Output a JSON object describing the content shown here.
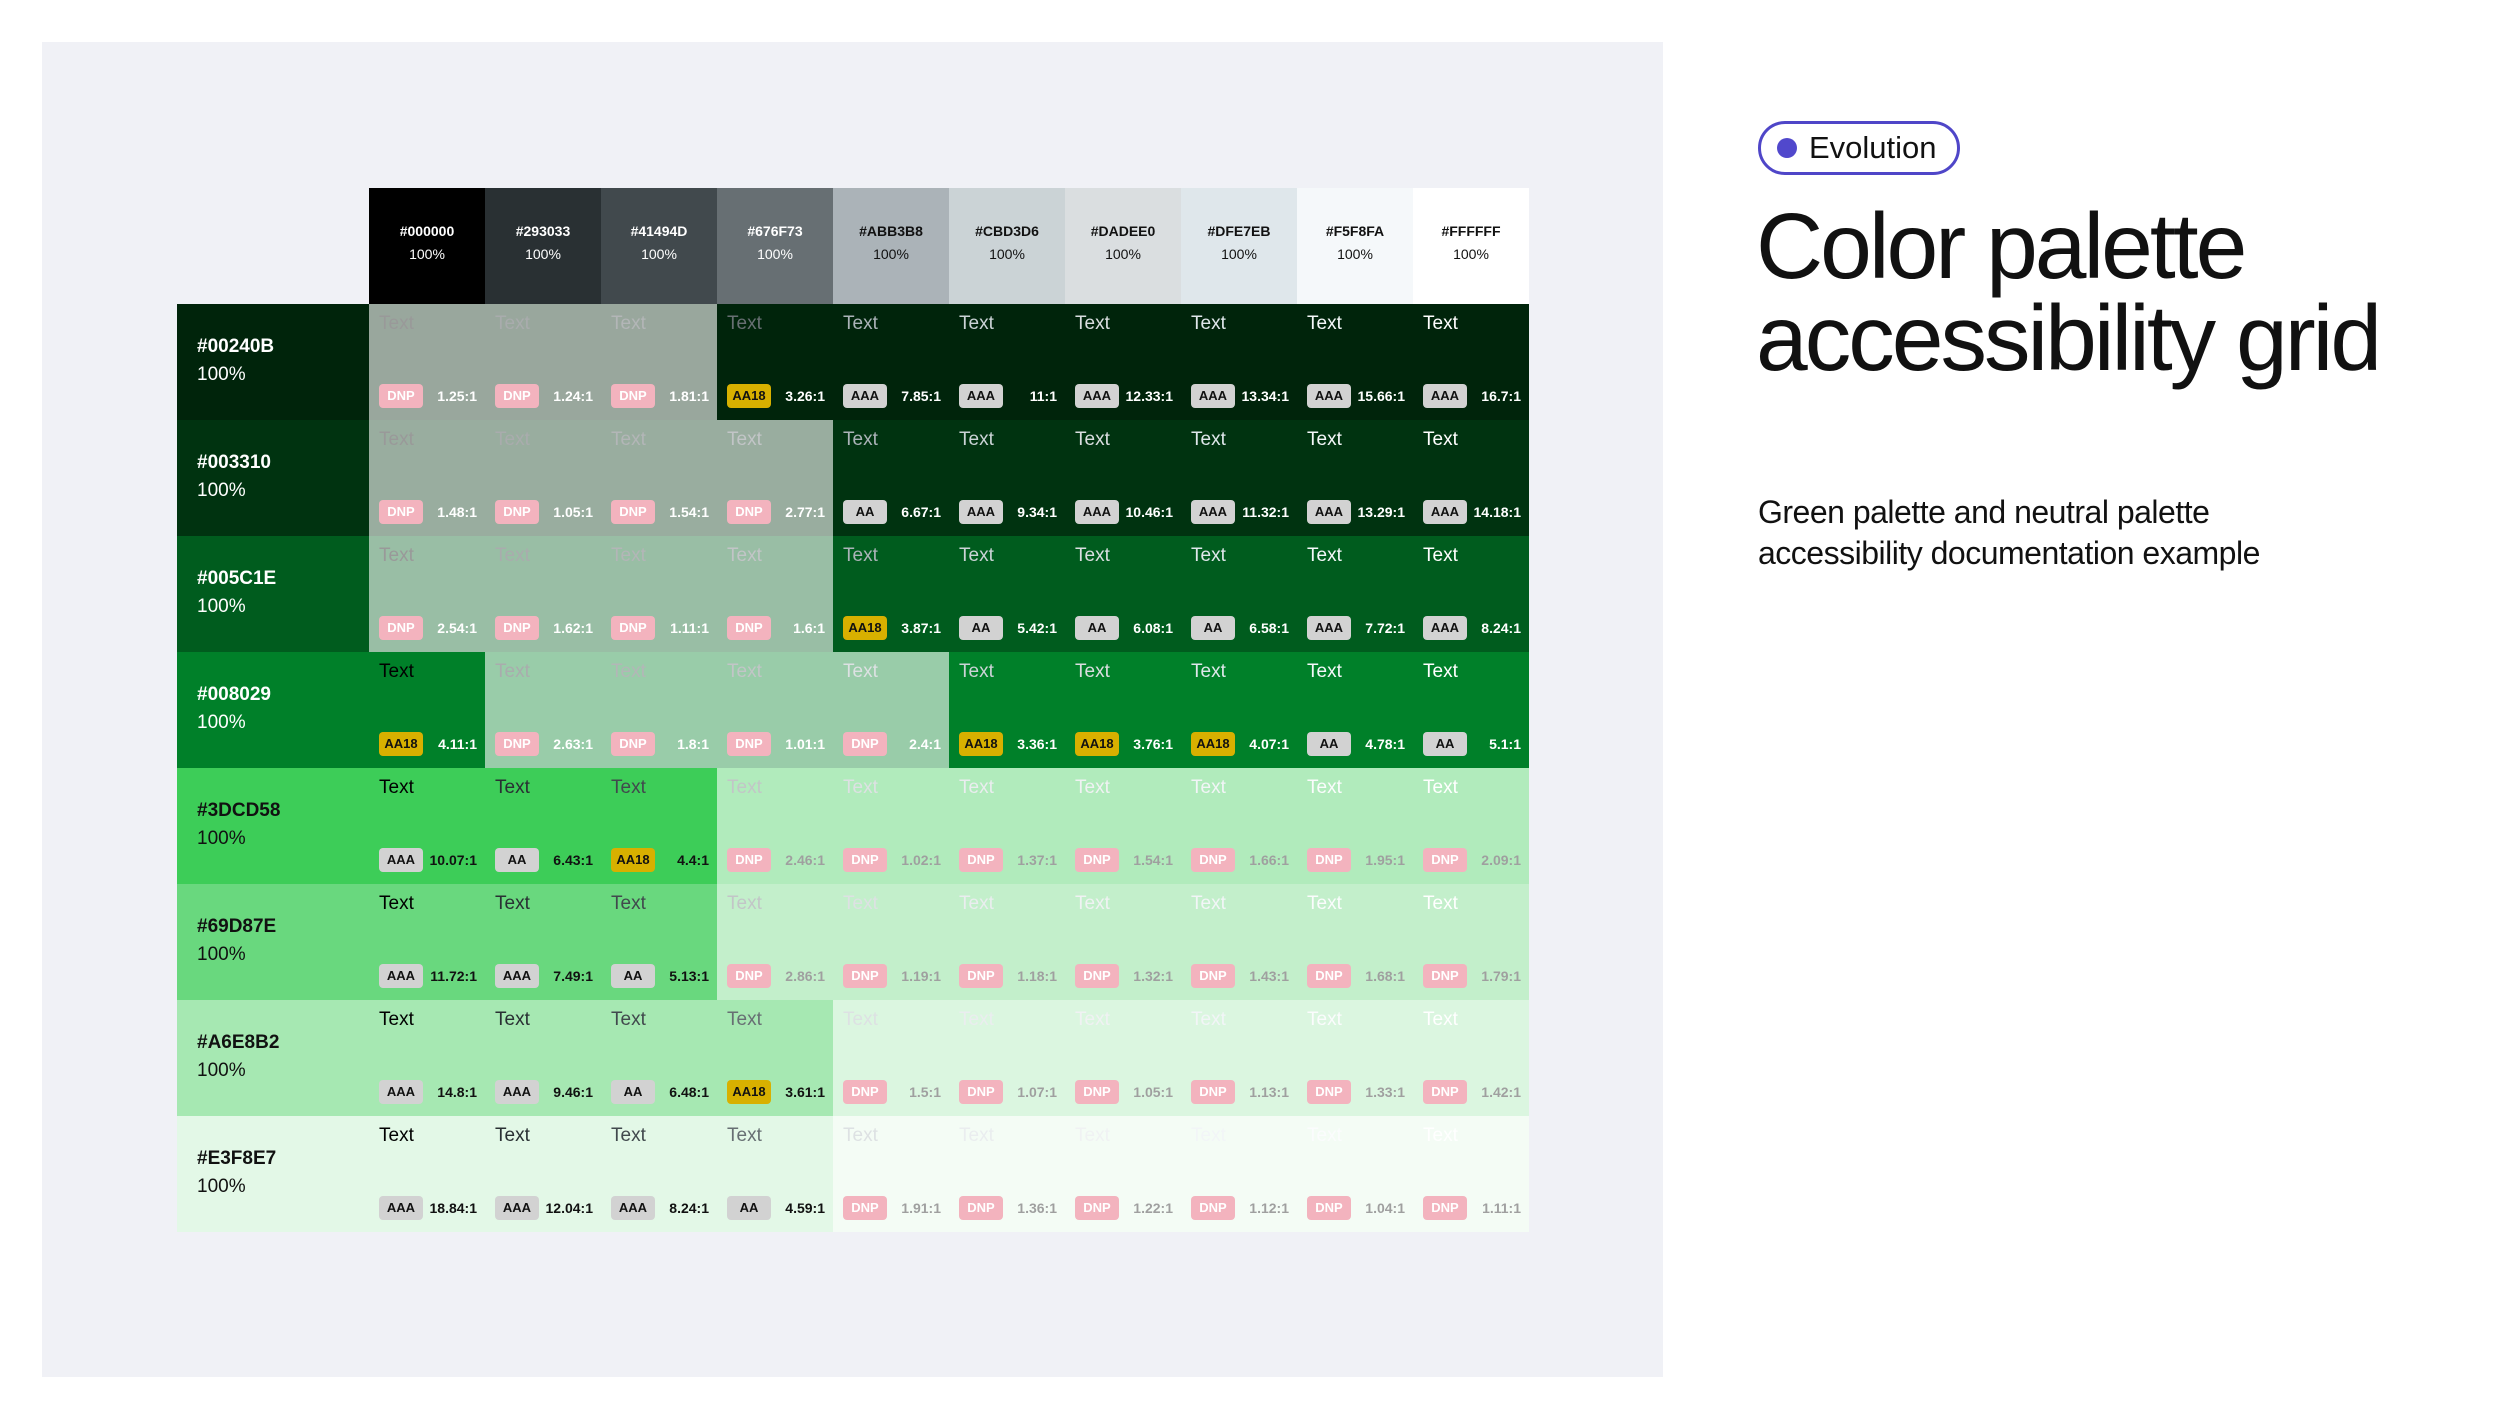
{
  "badge": "Evolution",
  "title": "Color palette accessibility grid",
  "subtitle": "Green palette and neutral palette accessibility documentation example",
  "sample_text": "Text",
  "columns": [
    {
      "hex": "#000000",
      "opacity": "100%"
    },
    {
      "hex": "#293033",
      "opacity": "100%"
    },
    {
      "hex": "#41494D",
      "opacity": "100%"
    },
    {
      "hex": "#676F73",
      "opacity": "100%"
    },
    {
      "hex": "#ABB3B8",
      "opacity": "100%"
    },
    {
      "hex": "#CBD3D6",
      "opacity": "100%"
    },
    {
      "hex": "#DADEE0",
      "opacity": "100%"
    },
    {
      "hex": "#DFE7EB",
      "opacity": "100%"
    },
    {
      "hex": "#F5F8FA",
      "opacity": "100%"
    },
    {
      "hex": "#FFFFFF",
      "opacity": "100%"
    }
  ],
  "rows": [
    {
      "hex": "#00240B",
      "opacity": "100%",
      "cells": [
        [
          "DNP",
          "1.25:1"
        ],
        [
          "DNP",
          "1.24:1"
        ],
        [
          "DNP",
          "1.81:1"
        ],
        [
          "AA18",
          "3.26:1"
        ],
        [
          "AAA",
          "7.85:1"
        ],
        [
          "AAA",
          "11:1"
        ],
        [
          "AAA",
          "12.33:1"
        ],
        [
          "AAA",
          "13.34:1"
        ],
        [
          "AAA",
          "15.66:1"
        ],
        [
          "AAA",
          "16.7:1"
        ]
      ]
    },
    {
      "hex": "#003310",
      "opacity": "100%",
      "cells": [
        [
          "DNP",
          "1.48:1"
        ],
        [
          "DNP",
          "1.05:1"
        ],
        [
          "DNP",
          "1.54:1"
        ],
        [
          "DNP",
          "2.77:1"
        ],
        [
          "AA",
          "6.67:1"
        ],
        [
          "AAA",
          "9.34:1"
        ],
        [
          "AAA",
          "10.46:1"
        ],
        [
          "AAA",
          "11.32:1"
        ],
        [
          "AAA",
          "13.29:1"
        ],
        [
          "AAA",
          "14.18:1"
        ]
      ]
    },
    {
      "hex": "#005C1E",
      "opacity": "100%",
      "cells": [
        [
          "DNP",
          "2.54:1"
        ],
        [
          "DNP",
          "1.62:1"
        ],
        [
          "DNP",
          "1.11:1"
        ],
        [
          "DNP",
          "1.6:1"
        ],
        [
          "AA18",
          "3.87:1"
        ],
        [
          "AA",
          "5.42:1"
        ],
        [
          "AA",
          "6.08:1"
        ],
        [
          "AA",
          "6.58:1"
        ],
        [
          "AAA",
          "7.72:1"
        ],
        [
          "AAA",
          "8.24:1"
        ]
      ]
    },
    {
      "hex": "#008029",
      "opacity": "100%",
      "cells": [
        [
          "AA18",
          "4.11:1"
        ],
        [
          "DNP",
          "2.63:1"
        ],
        [
          "DNP",
          "1.8:1"
        ],
        [
          "DNP",
          "1.01:1"
        ],
        [
          "DNP",
          "2.4:1"
        ],
        [
          "AA18",
          "3.36:1"
        ],
        [
          "AA18",
          "3.76:1"
        ],
        [
          "AA18",
          "4.07:1"
        ],
        [
          "AA",
          "4.78:1"
        ],
        [
          "AA",
          "5.1:1"
        ]
      ]
    },
    {
      "hex": "#3DCD58",
      "opacity": "100%",
      "cells": [
        [
          "AAA",
          "10.07:1"
        ],
        [
          "AA",
          "6.43:1"
        ],
        [
          "AA18",
          "4.4:1"
        ],
        [
          "DNP",
          "2.46:1"
        ],
        [
          "DNP",
          "1.02:1"
        ],
        [
          "DNP",
          "1.37:1"
        ],
        [
          "DNP",
          "1.54:1"
        ],
        [
          "DNP",
          "1.66:1"
        ],
        [
          "DNP",
          "1.95:1"
        ],
        [
          "DNP",
          "2.09:1"
        ]
      ]
    },
    {
      "hex": "#69D87E",
      "opacity": "100%",
      "cells": [
        [
          "AAA",
          "11.72:1"
        ],
        [
          "AAA",
          "7.49:1"
        ],
        [
          "AA",
          "5.13:1"
        ],
        [
          "DNP",
          "2.86:1"
        ],
        [
          "DNP",
          "1.19:1"
        ],
        [
          "DNP",
          "1.18:1"
        ],
        [
          "DNP",
          "1.32:1"
        ],
        [
          "DNP",
          "1.43:1"
        ],
        [
          "DNP",
          "1.68:1"
        ],
        [
          "DNP",
          "1.79:1"
        ]
      ]
    },
    {
      "hex": "#A6E8B2",
      "opacity": "100%",
      "cells": [
        [
          "AAA",
          "14.8:1"
        ],
        [
          "AAA",
          "9.46:1"
        ],
        [
          "AA",
          "6.48:1"
        ],
        [
          "AA18",
          "3.61:1"
        ],
        [
          "DNP",
          "1.5:1"
        ],
        [
          "DNP",
          "1.07:1"
        ],
        [
          "DNP",
          "1.05:1"
        ],
        [
          "DNP",
          "1.13:1"
        ],
        [
          "DNP",
          "1.33:1"
        ],
        [
          "DNP",
          "1.42:1"
        ]
      ]
    },
    {
      "hex": "#E3F8E7",
      "opacity": "100%",
      "cells": [
        [
          "AAA",
          "18.84:1"
        ],
        [
          "AAA",
          "12.04:1"
        ],
        [
          "AAA",
          "8.24:1"
        ],
        [
          "AA",
          "4.59:1"
        ],
        [
          "DNP",
          "1.91:1"
        ],
        [
          "DNP",
          "1.36:1"
        ],
        [
          "DNP",
          "1.22:1"
        ],
        [
          "DNP",
          "1.12:1"
        ],
        [
          "DNP",
          "1.04:1"
        ],
        [
          "DNP",
          "1.11:1"
        ]
      ]
    }
  ]
}
